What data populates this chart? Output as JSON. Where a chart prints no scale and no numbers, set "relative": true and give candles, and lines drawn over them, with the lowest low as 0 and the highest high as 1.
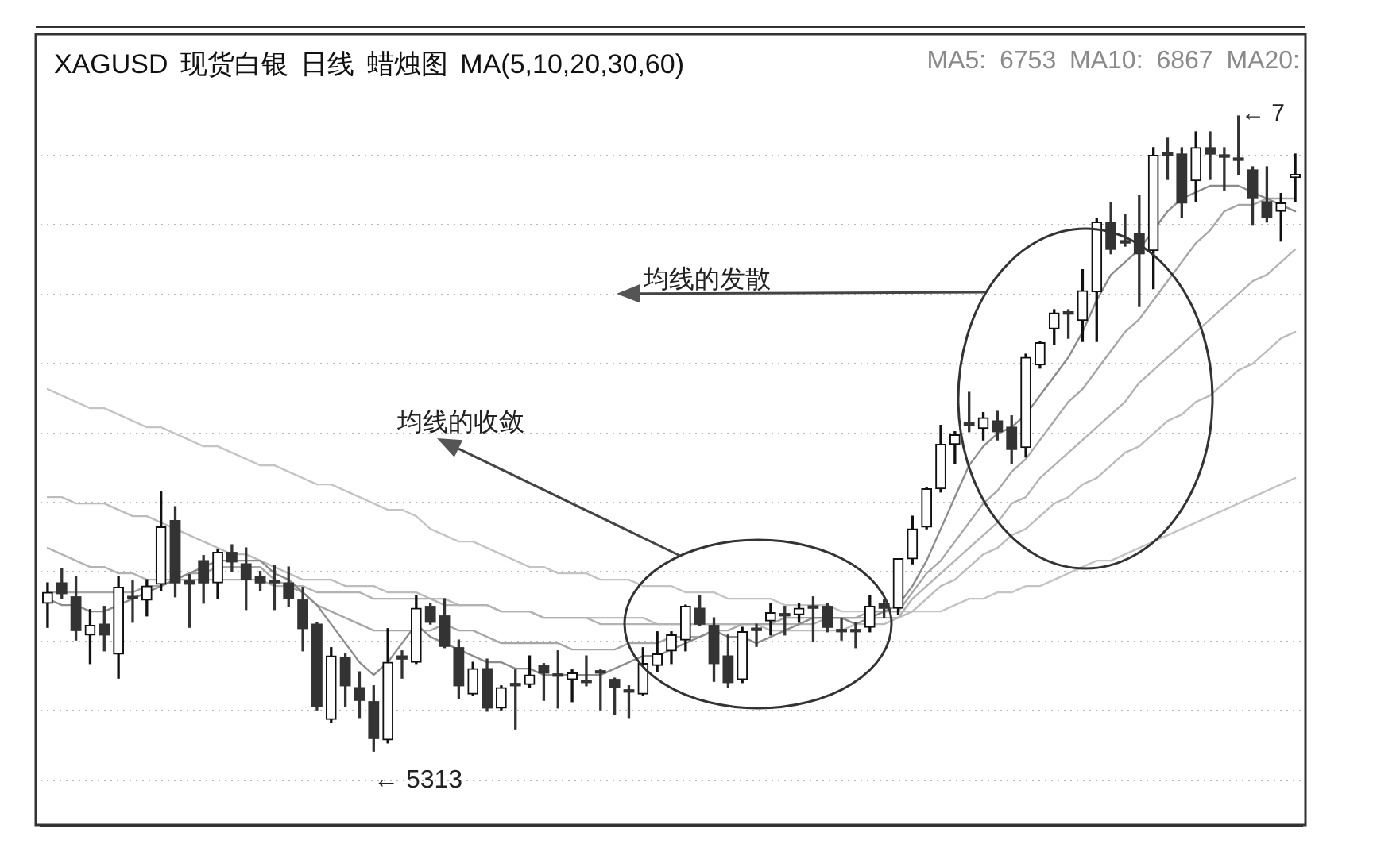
{
  "chart_data": {
    "type": "candlestick",
    "title": "XAGUSD 现货白银 日线 蜡烛图 MA(5,10,20,30,60)",
    "subtitle": "MA5: 6753 MA10: 6867 MA20:",
    "relative": true,
    "grid": "y",
    "categories": [
      null,
      null,
      null,
      null,
      null,
      null,
      null,
      null,
      null,
      null,
      null,
      null,
      null,
      null,
      null,
      null,
      null,
      null,
      null,
      null,
      null,
      null,
      null,
      null,
      null,
      null,
      null,
      null,
      null,
      null,
      null,
      null,
      null,
      null,
      null,
      null,
      null,
      null,
      null,
      null,
      null,
      null,
      null,
      null,
      null,
      null,
      null,
      null,
      null,
      null,
      null,
      null,
      null,
      null,
      null,
      null,
      null,
      null,
      null,
      null,
      null,
      null,
      null,
      null,
      null,
      null,
      null,
      null,
      null,
      null,
      null,
      null,
      null,
      null,
      null,
      null,
      null,
      null,
      null,
      null,
      null,
      null,
      null,
      null,
      null,
      null,
      null,
      null,
      null
    ],
    "ohlc": [
      [
        0.233,
        0.265,
        0.195,
        0.25
      ],
      [
        0.265,
        0.288,
        0.24,
        0.248
      ],
      [
        0.243,
        0.275,
        0.175,
        0.19
      ],
      [
        0.183,
        0.223,
        0.138,
        0.198
      ],
      [
        0.2,
        0.228,
        0.158,
        0.183
      ],
      [
        0.153,
        0.275,
        0.115,
        0.258
      ],
      [
        0.243,
        0.268,
        0.203,
        0.24
      ],
      [
        0.238,
        0.27,
        0.213,
        0.26
      ],
      [
        0.263,
        0.408,
        0.253,
        0.353
      ],
      [
        0.363,
        0.385,
        0.243,
        0.265
      ],
      [
        0.268,
        0.278,
        0.195,
        0.263
      ],
      [
        0.3,
        0.308,
        0.233,
        0.265
      ],
      [
        0.265,
        0.318,
        0.24,
        0.313
      ],
      [
        0.313,
        0.325,
        0.283,
        0.298
      ],
      [
        0.295,
        0.32,
        0.223,
        0.27
      ],
      [
        0.275,
        0.283,
        0.253,
        0.265
      ],
      [
        0.268,
        0.293,
        0.223,
        0.265
      ],
      [
        0.265,
        0.29,
        0.228,
        0.24
      ],
      [
        0.238,
        0.258,
        0.158,
        0.193
      ],
      [
        0.2,
        0.203,
        0.065,
        0.07
      ],
      [
        0.05,
        0.163,
        0.045,
        0.15
      ],
      [
        0.148,
        0.153,
        0.07,
        0.103
      ],
      [
        0.1,
        0.125,
        0.053,
        0.08
      ],
      [
        0.078,
        0.103,
        0,
        0.02
      ],
      [
        0.018,
        0.193,
        0.013,
        0.14
      ],
      [
        0.15,
        0.158,
        0.115,
        0.145
      ],
      [
        0.14,
        0.245,
        0.138,
        0.225
      ],
      [
        0.228,
        0.233,
        0.2,
        0.203
      ],
      [
        0.213,
        0.24,
        0.163,
        0.165
      ],
      [
        0.163,
        0.175,
        0.083,
        0.103
      ],
      [
        0.09,
        0.14,
        0.088,
        0.13
      ],
      [
        0.13,
        0.145,
        0.063,
        0.068
      ],
      [
        0.068,
        0.103,
        0.065,
        0.1
      ],
      [
        0.105,
        0.128,
        0.035,
        0.103
      ],
      [
        0.105,
        0.15,
        0.1,
        0.12
      ],
      [
        0.135,
        0.138,
        0.08,
        0.123
      ],
      [
        0.12,
        0.158,
        0.068,
        0.118
      ],
      [
        0.113,
        0.128,
        0.078,
        0.123
      ],
      [
        0.11,
        0.15,
        0.103,
        0.108
      ],
      [
        0.125,
        0.128,
        0.065,
        0.123
      ],
      [
        0.113,
        0.115,
        0.058,
        0.1
      ],
      [
        0.095,
        0.103,
        0.053,
        0.093
      ],
      [
        0.09,
        0.163,
        0.088,
        0.138
      ],
      [
        0.135,
        0.188,
        0.125,
        0.153
      ],
      [
        0.158,
        0.188,
        0.138,
        0.183
      ],
      [
        0.175,
        0.23,
        0.158,
        0.228
      ],
      [
        0.225,
        0.245,
        0.198,
        0.2
      ],
      [
        0.198,
        0.21,
        0.11,
        0.138
      ],
      [
        0.15,
        0.183,
        0.1,
        0.108
      ],
      [
        0.113,
        0.195,
        0.108,
        0.188
      ],
      [
        0.193,
        0.2,
        0.165,
        0.19
      ],
      [
        0.205,
        0.233,
        0.183,
        0.218
      ],
      [
        0.215,
        0.228,
        0.183,
        0.213
      ],
      [
        0.215,
        0.233,
        0.203,
        0.225
      ],
      [
        0.228,
        0.243,
        0.173,
        0.225
      ],
      [
        0.228,
        0.233,
        0.188,
        0.195
      ],
      [
        0.19,
        0.208,
        0.175,
        0.188
      ],
      [
        0.19,
        0.203,
        0.163,
        0.188
      ],
      [
        0.195,
        0.245,
        0.188,
        0.228
      ],
      [
        0.233,
        0.238,
        0.21,
        0.225
      ],
      [
        0.225,
        0.303,
        0.215,
        0.303
      ],
      [
        0.303,
        0.37,
        0.295,
        0.35
      ],
      [
        0.353,
        0.415,
        0.35,
        0.413
      ],
      [
        0.413,
        0.513,
        0.408,
        0.483
      ],
      [
        0.483,
        0.503,
        0.453,
        0.498
      ],
      [
        0.515,
        0.565,
        0.503,
        0.513
      ],
      [
        0.508,
        0.533,
        0.49,
        0.525
      ],
      [
        0.52,
        0.535,
        0.49,
        0.503
      ],
      [
        0.51,
        0.528,
        0.453,
        0.475
      ],
      [
        0.478,
        0.625,
        0.463,
        0.62
      ],
      [
        0.608,
        0.645,
        0.603,
        0.643
      ],
      [
        0.665,
        0.695,
        0.64,
        0.69
      ],
      [
        0.69,
        0.695,
        0.65,
        0.688
      ],
      [
        0.678,
        0.758,
        0.645,
        0.725
      ],
      [
        0.723,
        0.838,
        0.645,
        0.833
      ],
      [
        0.833,
        0.863,
        0.783,
        0.79
      ],
      [
        0.803,
        0.845,
        0.795,
        0.8
      ],
      [
        0.815,
        0.875,
        0.7,
        0.783
      ],
      [
        0.788,
        0.95,
        0.728,
        0.938
      ],
      [
        0.94,
        0.965,
        0.9,
        0.938
      ],
      [
        0.94,
        0.95,
        0.84,
        0.863
      ],
      [
        0.898,
        0.975,
        0.865,
        0.95
      ],
      [
        0.95,
        0.975,
        0.9,
        0.94
      ],
      [
        0.938,
        0.95,
        0.883,
        0.935
      ],
      [
        0.933,
        1,
        0.908,
        0.93
      ],
      [
        0.915,
        0.92,
        0.828,
        0.87
      ],
      [
        0.865,
        0.92,
        0.833,
        0.84
      ],
      [
        0.85,
        0.878,
        0.803,
        0.863
      ],
      [
        0.903,
        0.94,
        0.865,
        0.908
      ]
    ],
    "colors": [
      "#111111",
      "#333333",
      "#333333",
      "#111111",
      "#333333",
      "#111111",
      "#333333",
      "#111111",
      "#111111",
      "#333333",
      "#333333",
      "#333333",
      "#111111",
      "#333333",
      "#333333",
      "#333333",
      "#333333",
      "#333333",
      "#333333",
      "#333333",
      "#111111",
      "#333333",
      "#333333",
      "#333333",
      "#111111",
      "#333333",
      "#111111",
      "#333333",
      "#333333",
      "#333333",
      "#111111",
      "#333333",
      "#111111",
      "#333333",
      "#111111",
      "#333333",
      "#333333",
      "#111111",
      "#333333",
      "#333333",
      "#333333",
      "#333333",
      "#111111",
      "#111111",
      "#111111",
      "#111111",
      "#333333",
      "#333333",
      "#333333",
      "#111111",
      "#333333",
      "#111111",
      "#333333",
      "#111111",
      "#333333",
      "#333333",
      "#333333",
      "#333333",
      "#111111",
      "#333333",
      "#111111",
      "#111111",
      "#111111",
      "#111111",
      "#111111",
      "#333333",
      "#111111",
      "#333333",
      "#333333",
      "#111111",
      "#111111",
      "#111111",
      "#333333",
      "#111111",
      "#111111",
      "#333333",
      "#333333",
      "#333333",
      "#111111",
      "#333333",
      "#333333",
      "#111111",
      "#333333",
      "#333333",
      "#333333",
      "#333333",
      "#333333",
      "#111111",
      "#111111"
    ],
    "series": [
      {
        "type": "line",
        "color": "#8c8c8c",
        "values": [
          0.24,
          0.23,
          0.23,
          0.22,
          0.22,
          0.23,
          0.24,
          0.25,
          0.26,
          0.27,
          0.28,
          0.29,
          0.3,
          0.3,
          0.3,
          0.3,
          0.28,
          0.27,
          0.25,
          0.23,
          0.2,
          0.17,
          0.14,
          0.12,
          0.14,
          0.17,
          0.2,
          0.18,
          0.17,
          0.16,
          0.15,
          0.14,
          0.14,
          0.13,
          0.13,
          0.12,
          0.12,
          0.12,
          0.12,
          0.12,
          0.13,
          0.14,
          0.15,
          0.15,
          0.16,
          0.17,
          0.18,
          0.19,
          0.18,
          0.18,
          0.17,
          0.18,
          0.19,
          0.2,
          0.21,
          0.21,
          0.21,
          0.2,
          0.21,
          0.22,
          0.23,
          0.26,
          0.3,
          0.35,
          0.4,
          0.45,
          0.48,
          0.5,
          0.51,
          0.53,
          0.56,
          0.59,
          0.62,
          0.66,
          0.71,
          0.75,
          0.77,
          0.79,
          0.82,
          0.85,
          0.87,
          0.88,
          0.89,
          0.89,
          0.89,
          0.88,
          0.87,
          0.86,
          0.85
        ]
      },
      {
        "type": "line",
        "color": "#a6a6a6",
        "values": [
          0.25,
          0.25,
          0.25,
          0.25,
          0.25,
          0.25,
          0.25,
          0.26,
          0.26,
          0.27,
          0.28,
          0.28,
          0.29,
          0.29,
          0.29,
          0.29,
          0.27,
          0.26,
          0.25,
          0.23,
          0.22,
          0.21,
          0.2,
          0.19,
          0.19,
          0.19,
          0.19,
          0.19,
          0.2,
          0.19,
          0.19,
          0.18,
          0.17,
          0.17,
          0.17,
          0.17,
          0.17,
          0.16,
          0.16,
          0.16,
          0.16,
          0.17,
          0.17,
          0.17,
          0.18,
          0.18,
          0.18,
          0.19,
          0.19,
          0.2,
          0.2,
          0.2,
          0.21,
          0.21,
          0.21,
          0.21,
          0.21,
          0.21,
          0.22,
          0.22,
          0.22,
          0.25,
          0.28,
          0.3,
          0.33,
          0.36,
          0.39,
          0.41,
          0.44,
          0.46,
          0.49,
          0.52,
          0.55,
          0.57,
          0.6,
          0.63,
          0.66,
          0.68,
          0.71,
          0.74,
          0.77,
          0.8,
          0.82,
          0.85,
          0.86,
          0.86,
          0.87,
          0.87,
          0.87
        ]
      },
      {
        "type": "line",
        "color": "#b3b3b3",
        "values": [
          0.32,
          0.31,
          0.3,
          0.29,
          0.29,
          0.28,
          0.28,
          0.27,
          0.27,
          0.27,
          0.27,
          0.27,
          0.27,
          0.27,
          0.27,
          0.27,
          0.26,
          0.26,
          0.26,
          0.25,
          0.25,
          0.25,
          0.25,
          0.24,
          0.24,
          0.24,
          0.24,
          0.24,
          0.23,
          0.23,
          0.23,
          0.23,
          0.22,
          0.22,
          0.22,
          0.21,
          0.21,
          0.21,
          0.21,
          0.2,
          0.2,
          0.2,
          0.2,
          0.2,
          0.2,
          0.2,
          0.2,
          0.2,
          0.2,
          0.2,
          0.2,
          0.2,
          0.2,
          0.2,
          0.2,
          0.21,
          0.21,
          0.21,
          0.21,
          0.21,
          0.21,
          0.24,
          0.26,
          0.28,
          0.3,
          0.32,
          0.34,
          0.36,
          0.39,
          0.4,
          0.43,
          0.45,
          0.47,
          0.49,
          0.51,
          0.53,
          0.55,
          0.58,
          0.6,
          0.62,
          0.64,
          0.66,
          0.68,
          0.7,
          0.72,
          0.74,
          0.75,
          0.77,
          0.79
        ]
      },
      {
        "type": "line",
        "color": "#bcbcbc",
        "values": [
          0.4,
          0.4,
          0.39,
          0.39,
          0.39,
          0.38,
          0.37,
          0.37,
          0.36,
          0.35,
          0.34,
          0.33,
          0.32,
          0.31,
          0.31,
          0.3,
          0.29,
          0.28,
          0.27,
          0.27,
          0.27,
          0.26,
          0.26,
          0.26,
          0.25,
          0.25,
          0.25,
          0.24,
          0.24,
          0.23,
          0.23,
          0.23,
          0.22,
          0.22,
          0.22,
          0.21,
          0.21,
          0.21,
          0.21,
          0.21,
          0.21,
          0.21,
          0.21,
          0.2,
          0.2,
          0.2,
          0.2,
          0.2,
          0.2,
          0.2,
          0.2,
          0.19,
          0.19,
          0.19,
          0.19,
          0.19,
          0.19,
          0.2,
          0.2,
          0.2,
          0.21,
          0.22,
          0.24,
          0.26,
          0.27,
          0.29,
          0.31,
          0.32,
          0.34,
          0.35,
          0.37,
          0.39,
          0.4,
          0.42,
          0.43,
          0.45,
          0.47,
          0.48,
          0.5,
          0.52,
          0.53,
          0.55,
          0.56,
          0.58,
          0.6,
          0.61,
          0.63,
          0.65,
          0.66
        ]
      },
      {
        "type": "line",
        "color": "#c4c4c4",
        "values": [
          0.57,
          0.56,
          0.55,
          0.54,
          0.54,
          0.53,
          0.52,
          0.51,
          0.51,
          0.5,
          0.49,
          0.48,
          0.48,
          0.47,
          0.46,
          0.45,
          0.45,
          0.44,
          0.43,
          0.42,
          0.42,
          0.41,
          0.4,
          0.39,
          0.38,
          0.38,
          0.37,
          0.35,
          0.34,
          0.33,
          0.33,
          0.32,
          0.31,
          0.3,
          0.29,
          0.29,
          0.28,
          0.28,
          0.28,
          0.27,
          0.27,
          0.27,
          0.26,
          0.26,
          0.26,
          0.25,
          0.25,
          0.25,
          0.24,
          0.24,
          0.24,
          0.24,
          0.23,
          0.23,
          0.23,
          0.23,
          0.22,
          0.22,
          0.22,
          0.22,
          0.22,
          0.22,
          0.22,
          0.22,
          0.23,
          0.24,
          0.24,
          0.25,
          0.25,
          0.26,
          0.26,
          0.27,
          0.28,
          0.29,
          0.3,
          0.3,
          0.31,
          0.32,
          0.33,
          0.34,
          0.35,
          0.36,
          0.37,
          0.38,
          0.39,
          0.4,
          0.41,
          0.42,
          0.43
        ]
      }
    ],
    "annotations": [
      "← 5313",
      "← 7",
      "均线的收敛",
      "均线的发散"
    ]
  }
}
